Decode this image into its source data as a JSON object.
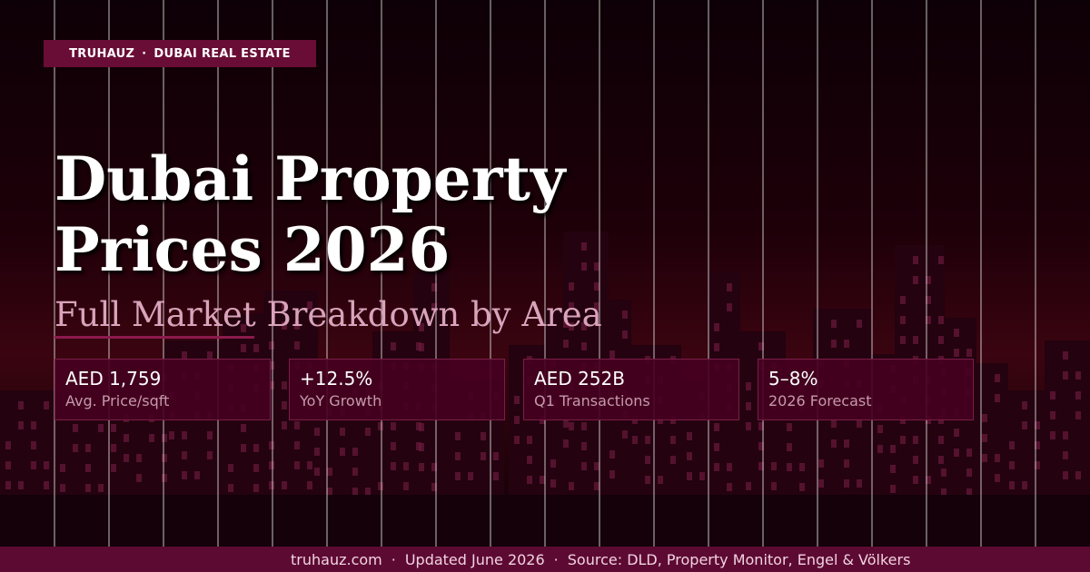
{
  "badge": {
    "brand": "TRUHAUZ",
    "section": "DUBAI REAL ESTATE"
  },
  "title": "Dubai Property Prices 2026",
  "subtitle": "Full Market Breakdown by Area",
  "stats": [
    {
      "value": "AED 1,759",
      "label": "Avg. Price/sqft"
    },
    {
      "value": "+12.5%",
      "label": "YoY Growth"
    },
    {
      "value": "AED 252B",
      "label": "Q1 Transactions"
    },
    {
      "value": "5–8%",
      "label": "2026 Forecast"
    }
  ],
  "footer": {
    "site": "truhauz.com",
    "updated": "Updated June 2026",
    "source": "Source: DLD, Property Monitor, Engel & Völkers"
  }
}
